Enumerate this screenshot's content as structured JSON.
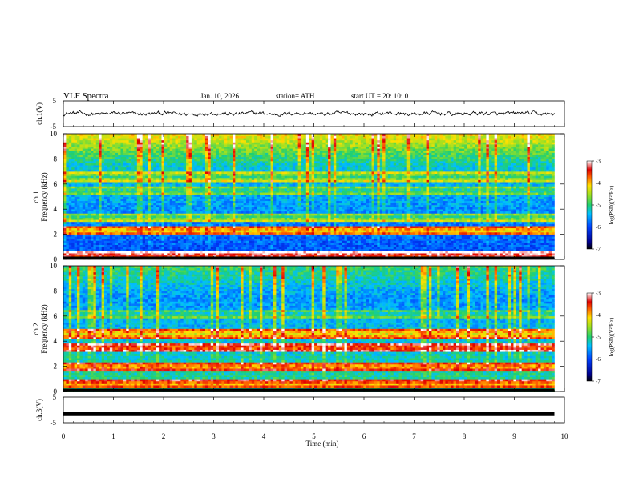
{
  "header": {
    "title": "VLF  Spectra",
    "date": "Jan. 10, 2026",
    "station": "station= ATH",
    "start_ut": "start  UT  =   20: 10: 0"
  },
  "chart_data": [
    {
      "type": "line",
      "panel": "ch1-voltage",
      "ylabel": "ch.1(V)",
      "ylim": [
        -5,
        5
      ],
      "yticks": [
        "5",
        "-5"
      ],
      "xlim": [
        0,
        10
      ],
      "trace_level": 0,
      "trace_noise_amplitude": 0.6,
      "trace_end_min": 9.8
    },
    {
      "type": "heatmap",
      "panel": "ch1-spectrogram",
      "ylabel": "ch.1\nFrequency  (kHz)",
      "ylim": [
        0,
        10
      ],
      "yticks": [
        "0",
        "2",
        "4",
        "6",
        "8",
        "10"
      ],
      "xlim": [
        0,
        9.8
      ],
      "description_bands_khz": [
        {
          "f": 0.3,
          "level": -3.5
        },
        {
          "f": 2.3,
          "level": -4.2
        },
        {
          "f": 3.4,
          "level": -5.0
        },
        {
          "f": 5.5,
          "level": -5.2
        },
        {
          "f": 6.6,
          "level": -5.0
        }
      ],
      "background_level_low": -6.0,
      "background_level_high": -5.0,
      "colorbar": {
        "label": "log(PSD)(V²/Hz)",
        "ticks": [
          "-3",
          "-4",
          "-5",
          "-6",
          "-7"
        ],
        "range": [
          -7,
          -3
        ]
      }
    },
    {
      "type": "heatmap",
      "panel": "ch2-spectrogram",
      "ylabel": "ch.2\nFrequency  (kHz)",
      "ylim": [
        0,
        10
      ],
      "yticks": [
        "0",
        "2",
        "4",
        "6",
        "8",
        "10"
      ],
      "xlim": [
        0,
        9.8
      ],
      "description_bands_khz": [
        {
          "f": 0.6,
          "level": -4.0
        },
        {
          "f": 2.0,
          "level": -4.0
        },
        {
          "f": 3.5,
          "level": -3.8
        },
        {
          "f": 4.6,
          "level": -4.3
        },
        {
          "f": 6.2,
          "level": -5.3
        }
      ],
      "background_level_low": -5.0,
      "background_level_high": -5.8,
      "colorbar": {
        "label": "log(PSD)(V²/Hz)",
        "ticks": [
          "-3",
          "-4",
          "-5",
          "-6",
          "-7"
        ],
        "range": [
          -7,
          -3
        ]
      }
    },
    {
      "type": "line",
      "panel": "ch3-voltage",
      "ylabel": "ch.3(V)",
      "ylim": [
        -5,
        5
      ],
      "yticks": [
        "5",
        "-5"
      ],
      "xlim": [
        0,
        10
      ],
      "trace_level": -1.5,
      "trace_end_min": 9.8
    }
  ],
  "xaxis": {
    "label": "Time  (min)",
    "ticks": [
      "0",
      "1",
      "2",
      "3",
      "4",
      "5",
      "6",
      "7",
      "8",
      "9",
      "10"
    ]
  },
  "colors": {
    "trace": "#000000",
    "frame": "#000000"
  }
}
